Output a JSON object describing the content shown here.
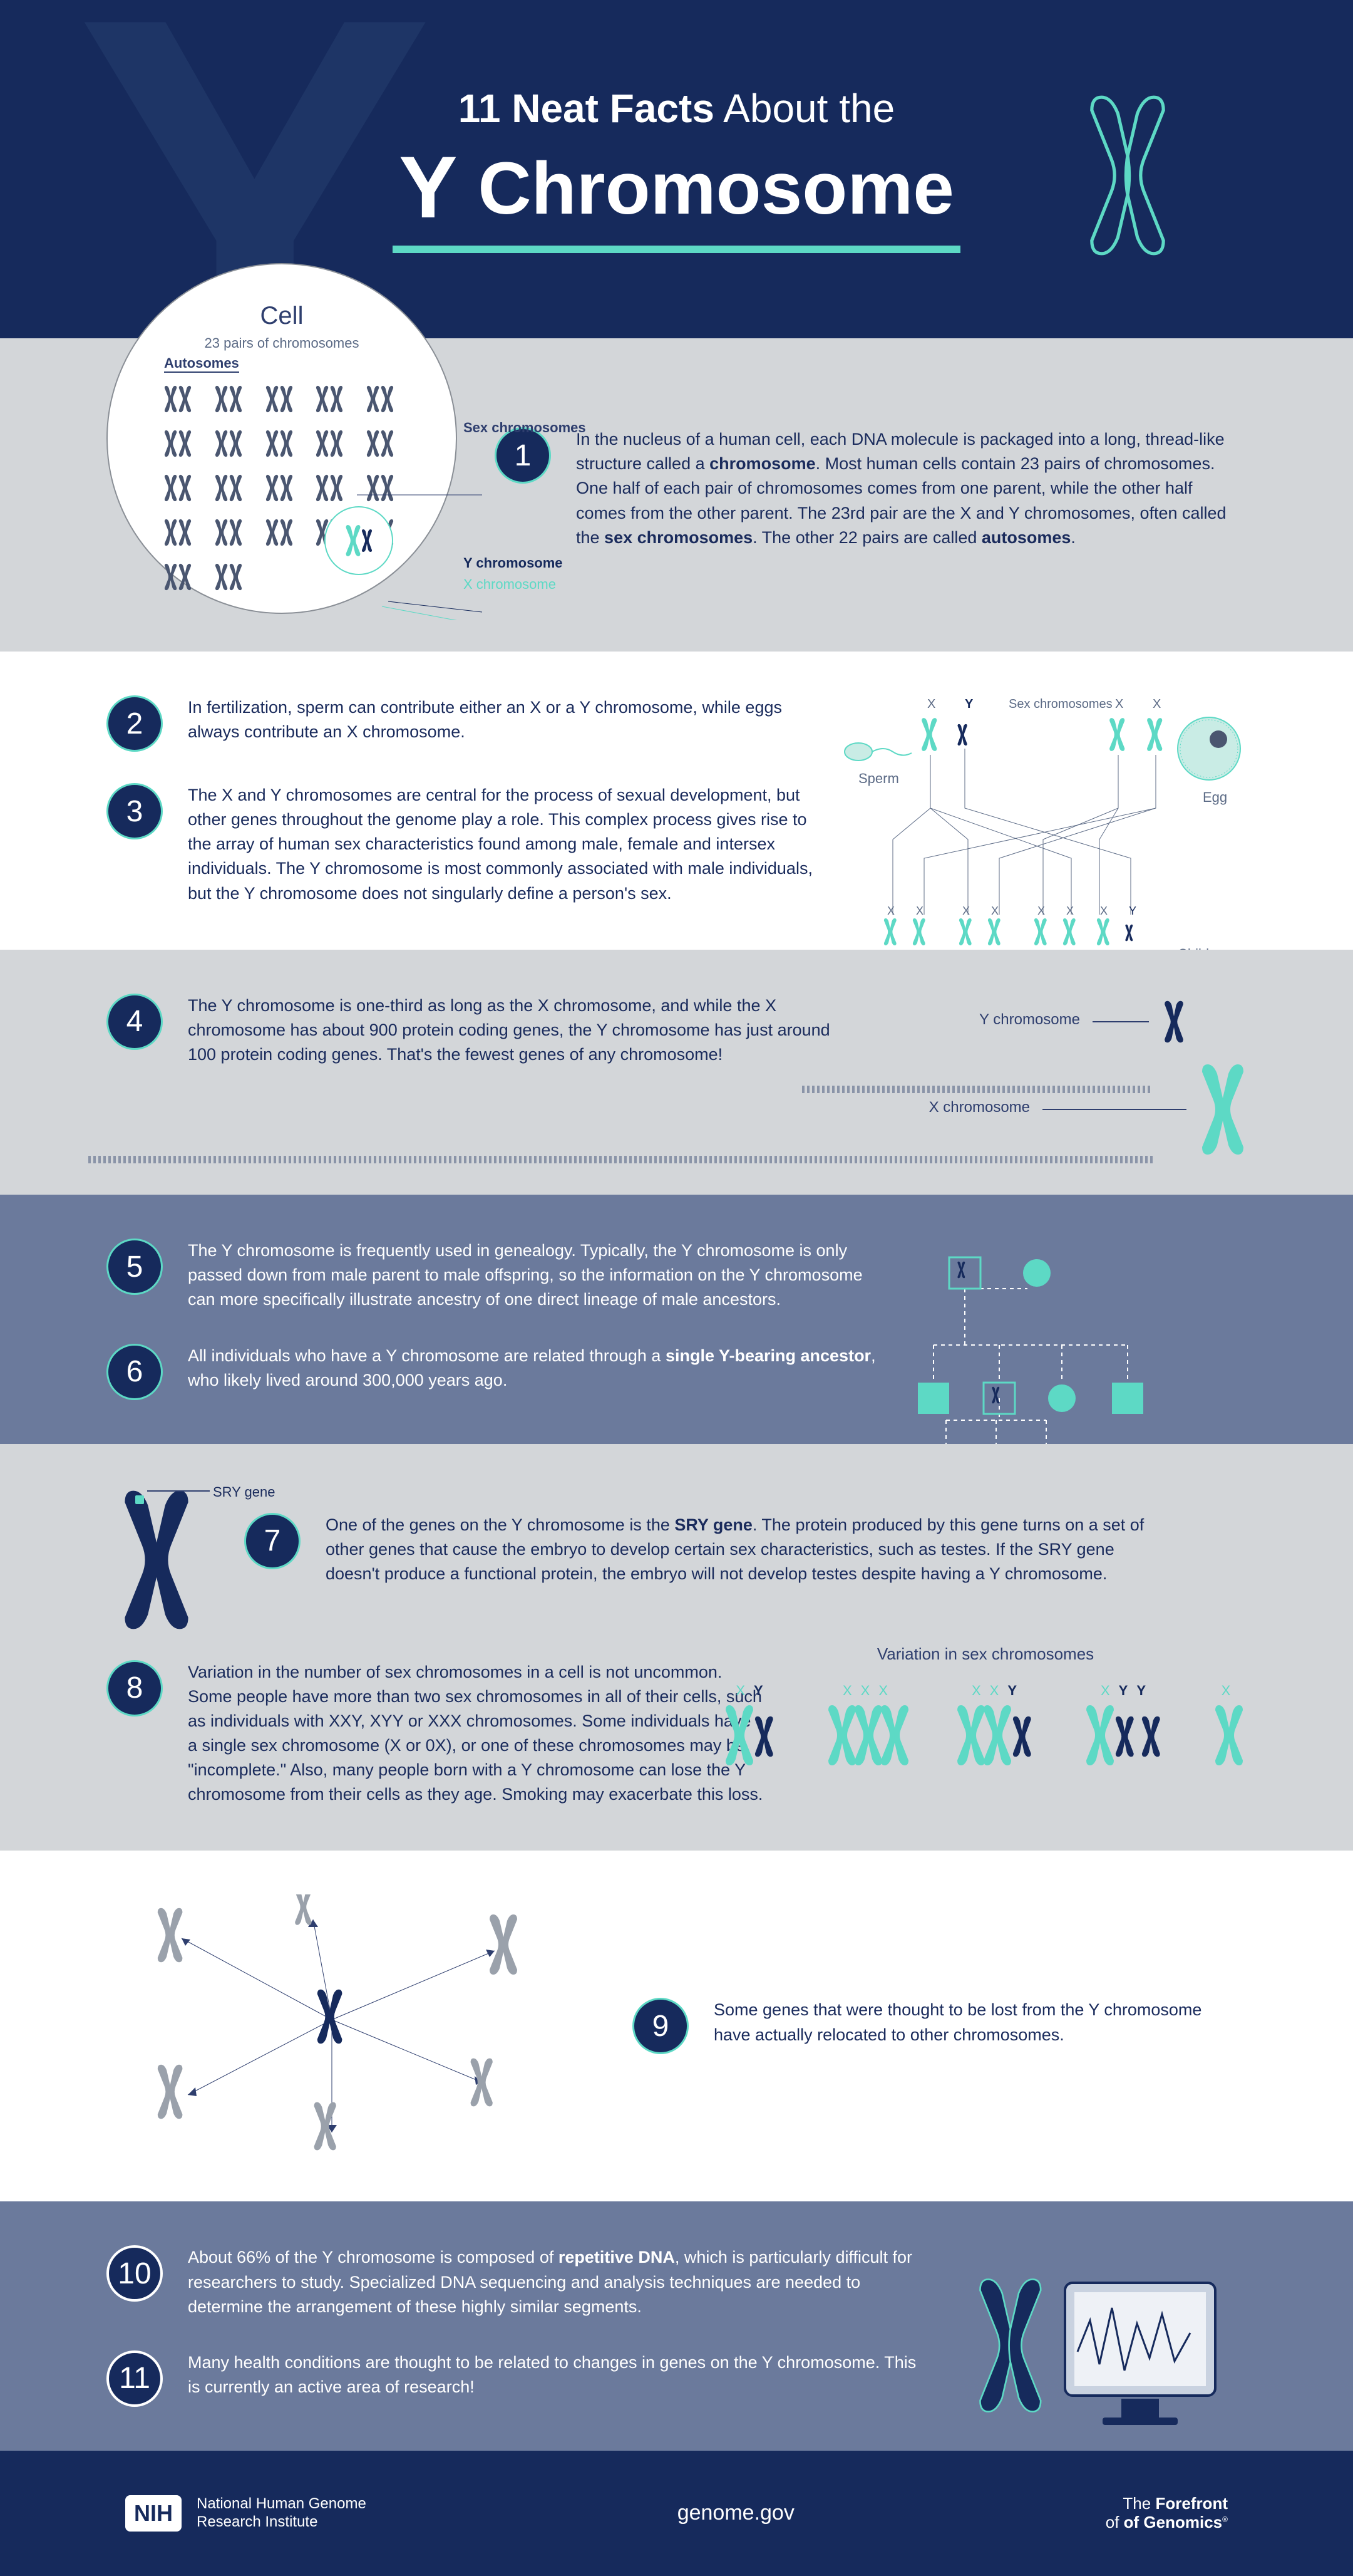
{
  "colors": {
    "navy": "#162a5c",
    "navy_outline": "#1e3566",
    "accent": "#5dd9c5",
    "grey_bg": "#d3d6d9",
    "slate_bg": "#6b7a9c",
    "grey": "#8a8f96",
    "text_muted": "#5c6b86",
    "chromo_grey": "#9aa1ab"
  },
  "typography": {
    "body_size_pt": 27,
    "header_title_size_pt": 118,
    "header_kicker_size_pt": 64,
    "badge_size_pt": 48
  },
  "header": {
    "kicker_bold": "11 Neat Facts",
    "kicker_light": "About the",
    "title_y": "Y",
    "title_word": "Chromosome"
  },
  "cell": {
    "title": "Cell",
    "subtitle": "23 pairs of chromosomes",
    "autosomes_label": "Autosomes",
    "pairs_count": 22,
    "sex_label": "Sex chromosomes",
    "y_label": "Y chromosome",
    "x_label": "X chromosome"
  },
  "fertilization": {
    "label_sex": "Sex chromosomes",
    "label_sperm": "Sperm",
    "label_egg": "Egg",
    "label_children": "Children",
    "children": [
      [
        "X",
        "X"
      ],
      [
        "X",
        "X"
      ],
      [
        "X",
        "X"
      ],
      [
        "X",
        "Y"
      ]
    ]
  },
  "size_compare": {
    "y_label": "Y chromosome",
    "x_label": "X chromosome"
  },
  "sry": {
    "label": "SRY gene"
  },
  "variation": {
    "title": "Variation in sex chromosomes",
    "groups": [
      {
        "labels": [
          "X",
          "Y"
        ],
        "label_colors": [
          "x",
          "y"
        ]
      },
      {
        "labels": [
          "X",
          "X",
          "X"
        ],
        "label_colors": [
          "x",
          "x",
          "x"
        ]
      },
      {
        "labels": [
          "X",
          "X",
          "Y"
        ],
        "label_colors": [
          "x",
          "x",
          "y"
        ]
      },
      {
        "labels": [
          "X",
          "Y",
          "Y"
        ],
        "label_colors": [
          "x",
          "y",
          "y"
        ]
      },
      {
        "labels": [
          "X"
        ],
        "label_colors": [
          "x"
        ]
      }
    ]
  },
  "facts": [
    {
      "n": "1",
      "html": "In the nucleus of a human cell, each DNA molecule is packaged into a long, thread-like structure called a <b>chromosome</b>. Most human cells contain 23 pairs of chromosomes. One half of each pair of chromosomes comes from one parent, while the other half comes from the other parent. The 23rd pair are the X and Y chromosomes, often called the <b>sex chromosomes</b>. The other 22 pairs are called <b>autosomes</b>."
    },
    {
      "n": "2",
      "html": "In fertilization, sperm can contribute either an X or a Y chromosome, while eggs always contribute an X chromosome."
    },
    {
      "n": "3",
      "html": "The X and Y chromosomes are central for the process of sexual development, but other genes throughout the genome play a role. This complex process gives rise to the array of human sex characteristics found among male, female and intersex individuals. The Y chromosome is most commonly associated with male individuals, but the Y chromosome does not singularly define a person's sex."
    },
    {
      "n": "4",
      "html": "The Y chromosome is one-third as long as the X chromosome, and while the X chromosome has about 900 protein coding genes, the Y chromosome has just around 100 protein coding genes. That's the fewest genes of any chromosome!"
    },
    {
      "n": "5",
      "html": "The Y chromosome is frequently used in genealogy. Typically, the Y chromosome is only passed down from male parent to male offspring, so the information on the Y chromosome can more specifically illustrate ancestry of one direct lineage of male ancestors."
    },
    {
      "n": "6",
      "html": "All individuals who have a Y chromosome are related through a <b>single Y-bearing ancestor</b>, who likely lived around 300,000 years ago."
    },
    {
      "n": "7",
      "html": "One of the genes on the Y chromosome is the <b>SRY gene</b>. The protein produced by this gene turns on a set of other genes that cause the embryo to develop certain sex characteristics, such as testes. If the SRY gene doesn't produce a functional protein, the embryo will not develop testes despite having a Y chromosome."
    },
    {
      "n": "8",
      "html": "Variation in the number of sex chromosomes in a cell is not uncommon. Some people have more than two sex chromosomes in all of their cells, such as individuals with XXY, XYY or XXX chromosomes. Some individuals have a single sex chromosome (X or 0X), or one of these chromosomes may be \"incomplete.\"  Also, many people born with a Y chromosome can lose the Y chromosome from their cells as they age. Smoking may exacerbate this loss."
    },
    {
      "n": "9",
      "html": "Some genes that were thought to be lost from the Y chromosome have actually relocated to other chromosomes."
    },
    {
      "n": "10",
      "html": "About 66% of the Y chromosome is composed of  <b>repetitive DNA</b>, which is particularly difficult for researchers to study. Specialized DNA sequencing and analysis techniques are needed to determine the arrangement of these highly similar segments."
    },
    {
      "n": "11",
      "html": "Many health conditions are thought to be related to changes in genes on the Y chromosome. This is currently an active area of research!"
    }
  ],
  "footer": {
    "nih_badge": "NIH",
    "nih_name_line1": "National Human Genome",
    "nih_name_line2": "Research Institute",
    "site": "genome.gov",
    "brand_line1": "The Forefront",
    "brand_line2": "of Genomics"
  }
}
